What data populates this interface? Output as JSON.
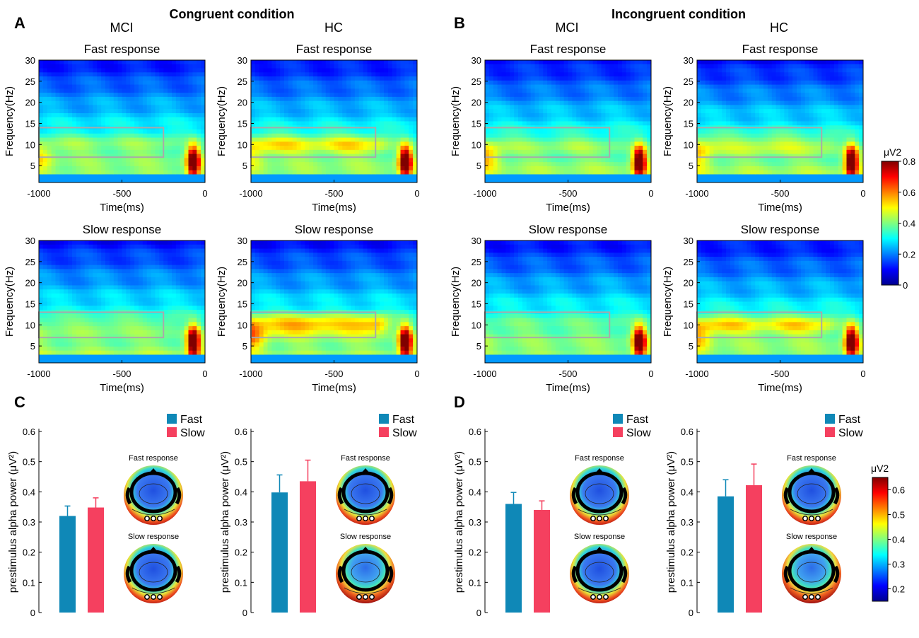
{
  "figure": {
    "panel_letters": [
      "A",
      "B",
      "C",
      "D"
    ],
    "condition_titles": [
      "Congruent condition",
      "Incongruent condition"
    ],
    "group_labels": [
      "MCI",
      "HC"
    ]
  },
  "chart_data": [
    {
      "type": "heatmap",
      "panel": "A",
      "condition": "Congruent condition",
      "group": "MCI",
      "title": "Fast response",
      "xlabel": "Time(ms)",
      "ylabel": "Frequency(Hz)",
      "xlim": [
        -1000,
        0
      ],
      "ylim": [
        1,
        30
      ],
      "x_ticks": [
        -1000,
        -500,
        0
      ],
      "y_ticks": [
        5,
        10,
        15,
        20,
        25,
        30
      ],
      "roi": {
        "time": [
          -1000,
          -250
        ],
        "freq": [
          7,
          14
        ]
      },
      "alpha_strength": 0.45,
      "left_strength": 0.55
    },
    {
      "type": "heatmap",
      "panel": "A",
      "condition": "Congruent condition",
      "group": "HC",
      "title": "Fast response",
      "xlabel": "Time(ms)",
      "ylabel": "Frequency(Hz)",
      "xlim": [
        -1000,
        0
      ],
      "ylim": [
        1,
        30
      ],
      "x_ticks": [
        -1000,
        -500,
        0
      ],
      "y_ticks": [
        5,
        10,
        15,
        20,
        25,
        30
      ],
      "roi": {
        "time": [
          -1000,
          -250
        ],
        "freq": [
          7,
          14
        ]
      },
      "alpha_strength": 0.55,
      "left_strength": 0.5
    },
    {
      "type": "heatmap",
      "panel": "B",
      "condition": "Incongruent condition",
      "group": "MCI",
      "title": "Fast response",
      "xlabel": "Time(ms)",
      "ylabel": "Frequency(Hz)",
      "xlim": [
        -1000,
        0
      ],
      "ylim": [
        1,
        30
      ],
      "x_ticks": [
        -1000,
        -500,
        0
      ],
      "y_ticks": [
        5,
        10,
        15,
        20,
        25,
        30
      ],
      "roi": {
        "time": [
          -1000,
          -250
        ],
        "freq": [
          7,
          14
        ]
      },
      "alpha_strength": 0.45,
      "left_strength": 0.6
    },
    {
      "type": "heatmap",
      "panel": "B",
      "condition": "Incongruent condition",
      "group": "HC",
      "title": "Fast response",
      "xlabel": "Time(ms)",
      "ylabel": "Frequency(Hz)",
      "xlim": [
        -1000,
        0
      ],
      "ylim": [
        1,
        30
      ],
      "x_ticks": [
        -1000,
        -500,
        0
      ],
      "y_ticks": [
        5,
        10,
        15,
        20,
        25,
        30
      ],
      "roi": {
        "time": [
          -1000,
          -250
        ],
        "freq": [
          7,
          14
        ]
      },
      "alpha_strength": 0.5,
      "left_strength": 0.55
    },
    {
      "type": "heatmap",
      "panel": "A",
      "condition": "Congruent condition",
      "group": "MCI",
      "title": "Slow response",
      "xlabel": "Time(ms)",
      "ylabel": "Frequency(Hz)",
      "xlim": [
        -1000,
        0
      ],
      "ylim": [
        1,
        30
      ],
      "x_ticks": [
        -1000,
        -500,
        0
      ],
      "y_ticks": [
        5,
        10,
        15,
        20,
        25,
        30
      ],
      "roi": {
        "time": [
          -1000,
          -250
        ],
        "freq": [
          7,
          13
        ]
      },
      "alpha_strength": 0.45,
      "left_strength": 0.45
    },
    {
      "type": "heatmap",
      "panel": "A",
      "condition": "Congruent condition",
      "group": "HC",
      "title": "Slow response",
      "xlabel": "Time(ms)",
      "ylabel": "Frequency(Hz)",
      "xlim": [
        -1000,
        0
      ],
      "ylim": [
        1,
        30
      ],
      "x_ticks": [
        -1000,
        -500,
        0
      ],
      "y_ticks": [
        5,
        10,
        15,
        20,
        25,
        30
      ],
      "roi": {
        "time": [
          -1000,
          -250
        ],
        "freq": [
          7,
          13
        ]
      },
      "alpha_strength": 0.62,
      "left_strength": 0.62
    },
    {
      "type": "heatmap",
      "panel": "B",
      "condition": "Incongruent condition",
      "group": "MCI",
      "title": "Slow response",
      "xlabel": "Time(ms)",
      "ylabel": "Frequency(Hz)",
      "xlim": [
        -1000,
        0
      ],
      "ylim": [
        1,
        30
      ],
      "x_ticks": [
        -1000,
        -500,
        0
      ],
      "y_ticks": [
        5,
        10,
        15,
        20,
        25,
        30
      ],
      "roi": {
        "time": [
          -1000,
          -250
        ],
        "freq": [
          7,
          13
        ]
      },
      "alpha_strength": 0.42,
      "left_strength": 0.45
    },
    {
      "type": "heatmap",
      "panel": "B",
      "condition": "Incongruent condition",
      "group": "HC",
      "title": "Slow response",
      "xlabel": "Time(ms)",
      "ylabel": "Frequency(Hz)",
      "xlim": [
        -1000,
        0
      ],
      "ylim": [
        1,
        30
      ],
      "x_ticks": [
        -1000,
        -500,
        0
      ],
      "y_ticks": [
        5,
        10,
        15,
        20,
        25,
        30
      ],
      "roi": {
        "time": [
          -1000,
          -250
        ],
        "freq": [
          7,
          13
        ]
      },
      "alpha_strength": 0.56,
      "left_strength": 0.58
    },
    {
      "type": "bar",
      "panel": "C",
      "group": "MCI",
      "ylabel": "prestimulus alpha power (μV²)",
      "ylim": [
        0,
        0.6
      ],
      "y_ticks": [
        0,
        0.1,
        0.2,
        0.3,
        0.4,
        0.5,
        0.6
      ],
      "legend": [
        "Fast",
        "Slow"
      ],
      "series": [
        {
          "name": "Fast",
          "value": 0.32,
          "error": 0.033
        },
        {
          "name": "Slow",
          "value": 0.348,
          "error": 0.032
        }
      ],
      "topo_labels": [
        "Fast response",
        "Slow response"
      ]
    },
    {
      "type": "bar",
      "panel": "C",
      "group": "HC",
      "ylabel": "prestimulus alpha power (μV²)",
      "ylim": [
        0,
        0.6
      ],
      "y_ticks": [
        0,
        0.1,
        0.2,
        0.3,
        0.4,
        0.5,
        0.6
      ],
      "legend": [
        "Fast",
        "Slow"
      ],
      "series": [
        {
          "name": "Fast",
          "value": 0.398,
          "error": 0.058
        },
        {
          "name": "Slow",
          "value": 0.435,
          "error": 0.07
        }
      ],
      "topo_labels": [
        "Fast response",
        "Slow response"
      ]
    },
    {
      "type": "bar",
      "panel": "D",
      "group": "MCI",
      "ylabel": "prestimulus alpha power (μV²)",
      "ylim": [
        0,
        0.6
      ],
      "y_ticks": [
        0,
        0.1,
        0.2,
        0.3,
        0.4,
        0.5,
        0.6
      ],
      "legend": [
        "Fast",
        "Slow"
      ],
      "series": [
        {
          "name": "Fast",
          "value": 0.36,
          "error": 0.038
        },
        {
          "name": "Slow",
          "value": 0.34,
          "error": 0.03
        }
      ],
      "topo_labels": [
        "Fast response",
        "Slow response"
      ]
    },
    {
      "type": "bar",
      "panel": "D",
      "group": "HC",
      "ylabel": "prestimulus alpha power (μV²)",
      "ylim": [
        0,
        0.6
      ],
      "y_ticks": [
        0,
        0.1,
        0.2,
        0.3,
        0.4,
        0.5,
        0.6
      ],
      "legend": [
        "Fast",
        "Slow"
      ],
      "series": [
        {
          "name": "Fast",
          "value": 0.385,
          "error": 0.055
        },
        {
          "name": "Slow",
          "value": 0.422,
          "error": 0.07
        }
      ],
      "topo_labels": [
        "Fast response",
        "Slow response"
      ]
    }
  ],
  "colorbars": [
    {
      "unit": "μV2",
      "range": [
        0,
        0.8
      ],
      "ticks": [
        "0",
        "0.2",
        "0.4",
        "0.6",
        "0.8"
      ]
    },
    {
      "unit": "μV2",
      "range": [
        0.15,
        0.65
      ],
      "ticks": [
        "0.2",
        "0.3",
        "0.4",
        "0.5",
        "0.6"
      ]
    }
  ],
  "colors": {
    "fast": "#0f88b7",
    "slow": "#f5405f",
    "roi_box": "#a9a9a9"
  }
}
